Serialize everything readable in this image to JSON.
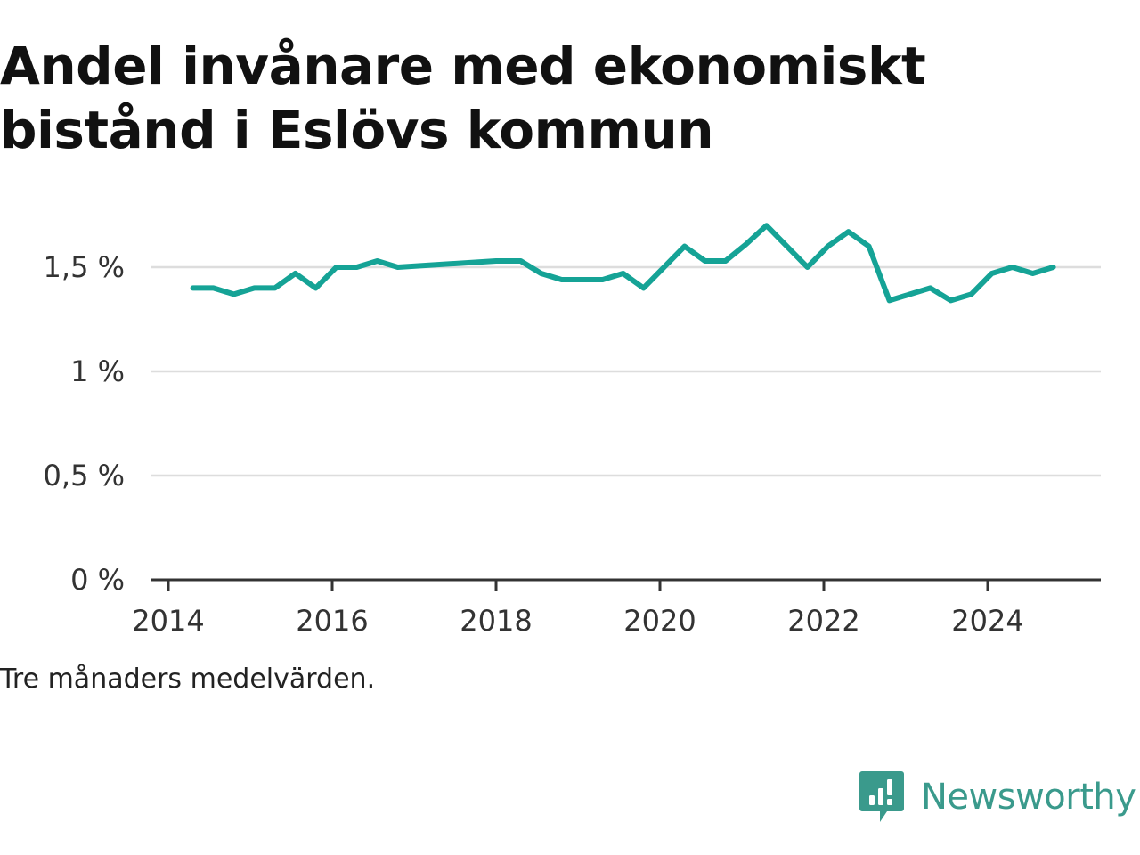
{
  "title": "Andel invånare med ekonomiskt bistånd i Eslövs kommun",
  "caption": "Tre månaders medelvärden.",
  "brand": {
    "name": "Newsworthy",
    "icon": "newsworthy-chart-bubble-icon",
    "color": "#3a9a8c"
  },
  "chart_data": {
    "type": "line",
    "title": "Andel invånare med ekonomiskt bistånd i Eslövs kommun",
    "xlabel": "",
    "ylabel": "",
    "xlim": [
      2014,
      2025.4
    ],
    "ylim": [
      0,
      1.8
    ],
    "x_ticks": [
      {
        "value": 2014,
        "label": "2014"
      },
      {
        "value": 2016,
        "label": "2016"
      },
      {
        "value": 2018,
        "label": "2018"
      },
      {
        "value": 2020,
        "label": "2020"
      },
      {
        "value": 2022,
        "label": "2022"
      },
      {
        "value": 2024,
        "label": "2024"
      }
    ],
    "y_ticks": [
      {
        "value": 0,
        "label": "0 %"
      },
      {
        "value": 0.5,
        "label": "0,5 %"
      },
      {
        "value": 1,
        "label": "1 %"
      },
      {
        "value": 1.5,
        "label": "1,5 %"
      }
    ],
    "grid": true,
    "line_color": "#15a396",
    "series": [
      {
        "x": [
          2014.3,
          2014.55,
          2014.8,
          2015.05,
          2015.3,
          2015.55,
          2015.8,
          2016.05,
          2016.3,
          2016.55,
          2016.8,
          2018.0,
          2018.3,
          2018.55,
          2018.8,
          2019.05,
          2019.3,
          2019.55,
          2019.8,
          2020.05,
          2020.3,
          2020.55,
          2020.8,
          2021.05,
          2021.3,
          2021.55,
          2021.8,
          2022.05,
          2022.3,
          2022.55,
          2022.8,
          2023.05,
          2023.3,
          2023.55,
          2023.8,
          2024.05,
          2024.3,
          2024.55,
          2024.8
        ],
        "y": [
          1.4,
          1.4,
          1.37,
          1.4,
          1.4,
          1.47,
          1.4,
          1.5,
          1.5,
          1.53,
          1.5,
          1.53,
          1.53,
          1.47,
          1.44,
          1.44,
          1.44,
          1.47,
          1.4,
          1.5,
          1.6,
          1.53,
          1.53,
          1.61,
          1.7,
          1.6,
          1.5,
          1.6,
          1.67,
          1.6,
          1.34,
          1.37,
          1.4,
          1.34,
          1.37,
          1.47,
          1.5,
          1.47,
          1.5
        ]
      }
    ]
  }
}
